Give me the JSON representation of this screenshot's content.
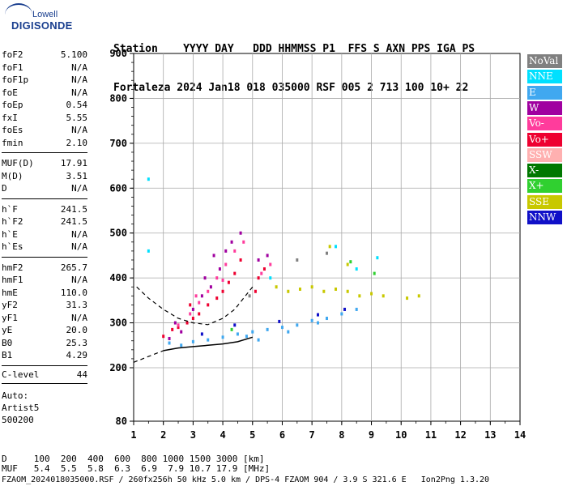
{
  "logo": {
    "top": "Lowell",
    "main": "DIGISONDE"
  },
  "header": {
    "line1": "Station    YYYY DAY   DDD HHMMSS P1  FFS S AXN PPS IGA PS",
    "line2": "Fortaleza 2024 Jan18 018 035000 RSF 005 2 713 100 10+ 22"
  },
  "params_group1": [
    {
      "k": "foF2",
      "v": "5.100"
    },
    {
      "k": "foF1",
      "v": "N/A"
    },
    {
      "k": "foF1p",
      "v": "N/A"
    },
    {
      "k": "foE",
      "v": "N/A"
    },
    {
      "k": "foEp",
      "v": "0.54"
    },
    {
      "k": "fxI",
      "v": "5.55"
    },
    {
      "k": "foEs",
      "v": "N/A"
    },
    {
      "k": "fmin",
      "v": "2.10"
    }
  ],
  "params_group2": [
    {
      "k": "MUF(D)",
      "v": "17.91"
    },
    {
      "k": "M(D)",
      "v": "3.51"
    },
    {
      "k": "D",
      "v": "N/A"
    }
  ],
  "params_group3": [
    {
      "k": "h`F",
      "v": "241.5"
    },
    {
      "k": "h`F2",
      "v": "241.5"
    },
    {
      "k": "h`E",
      "v": "N/A"
    },
    {
      "k": "h`Es",
      "v": "N/A"
    }
  ],
  "params_group4": [
    {
      "k": "hmF2",
      "v": "265.7"
    },
    {
      "k": "hmF1",
      "v": "N/A"
    },
    {
      "k": "hmE",
      "v": "110.0"
    },
    {
      "k": "yF2",
      "v": "31.3"
    },
    {
      "k": "yF1",
      "v": "N/A"
    },
    {
      "k": "yE",
      "v": "20.0"
    },
    {
      "k": "B0",
      "v": "25.3"
    },
    {
      "k": "B1",
      "v": "4.29"
    }
  ],
  "clevel": {
    "k": "C-level",
    "v": "44"
  },
  "auto": {
    "line1": "Auto:",
    "line2": "Artist5",
    "line3": "500200"
  },
  "legend": [
    {
      "label": "NoVal",
      "color": "#808080"
    },
    {
      "label": "NNE",
      "color": "#00e0ff"
    },
    {
      "label": "E",
      "color": "#40a8f0"
    },
    {
      "label": "W",
      "color": "#a000a0"
    },
    {
      "label": "Vo-",
      "color": "#ff3c9c"
    },
    {
      "label": "Vo+",
      "color": "#ee0030"
    },
    {
      "label": "SSW",
      "color": "#ffb0b0"
    },
    {
      "label": "X-",
      "color": "#007800"
    },
    {
      "label": "X+",
      "color": "#30d030"
    },
    {
      "label": "SSE",
      "color": "#c8c800"
    },
    {
      "label": "NNW",
      "color": "#1010c8"
    }
  ],
  "footer": {
    "line1": "D     100  200  400  600  800 1000 1500 3000 [km]",
    "line2": "MUF   5.4  5.5  5.8  6.3  6.9  7.9 10.7 17.9 [MHz]",
    "line3": "FZAOM_20240180350 00.RSF / 260fx256h 50 kHz 5.0 km / DPS-4 FZAOM 904 / 3.9 S 321.6 E   Ion2Png 1.3.20"
  },
  "chart_data": {
    "type": "scatter",
    "xlabel": "",
    "ylabel": "",
    "xlim": [
      1,
      14
    ],
    "ylim": [
      80,
      900
    ],
    "x_ticks": [
      "1",
      "2",
      "3",
      "4",
      "5",
      "6",
      "7",
      "8",
      "9",
      "10",
      "11",
      "12",
      "13",
      "14"
    ],
    "y_ticks": [
      "80",
      "200",
      "300",
      "400",
      "500",
      "600",
      "700",
      "800",
      "900"
    ],
    "grid": true,
    "series": [
      {
        "name": "E",
        "color": "#40a8f0",
        "points": [
          [
            2.2,
            255
          ],
          [
            2.6,
            250
          ],
          [
            3.0,
            258
          ],
          [
            3.5,
            262
          ],
          [
            4.0,
            268
          ],
          [
            4.5,
            275
          ],
          [
            5.0,
            280
          ],
          [
            5.5,
            285
          ],
          [
            6.0,
            290
          ],
          [
            6.5,
            295
          ],
          [
            7.0,
            305
          ],
          [
            7.5,
            310
          ],
          [
            8.0,
            320
          ],
          [
            8.5,
            330
          ],
          [
            5.2,
            262
          ],
          [
            4.8,
            270
          ],
          [
            6.2,
            280
          ],
          [
            7.2,
            300
          ]
        ]
      },
      {
        "name": "Vo+",
        "color": "#ee0030",
        "points": [
          [
            2.0,
            270
          ],
          [
            2.3,
            285
          ],
          [
            2.5,
            290
          ],
          [
            2.8,
            300
          ],
          [
            3.0,
            310
          ],
          [
            3.2,
            320
          ],
          [
            3.5,
            340
          ],
          [
            3.8,
            355
          ],
          [
            4.0,
            370
          ],
          [
            4.2,
            390
          ],
          [
            4.4,
            410
          ],
          [
            4.6,
            440
          ],
          [
            5.1,
            370
          ],
          [
            5.2,
            400
          ],
          [
            5.4,
            420
          ],
          [
            2.9,
            340
          ]
        ]
      },
      {
        "name": "W",
        "color": "#a000a0",
        "points": [
          [
            2.2,
            265
          ],
          [
            2.6,
            280
          ],
          [
            3.0,
            330
          ],
          [
            3.3,
            360
          ],
          [
            3.6,
            380
          ],
          [
            3.9,
            420
          ],
          [
            4.1,
            460
          ],
          [
            4.3,
            480
          ],
          [
            4.6,
            500
          ],
          [
            5.2,
            440
          ],
          [
            5.5,
            450
          ],
          [
            3.4,
            400
          ],
          [
            3.7,
            450
          ],
          [
            2.4,
            300
          ]
        ]
      },
      {
        "name": "Vo-",
        "color": "#ff3c9c",
        "points": [
          [
            2.5,
            295
          ],
          [
            2.9,
            320
          ],
          [
            3.2,
            345
          ],
          [
            3.5,
            370
          ],
          [
            3.8,
            400
          ],
          [
            4.1,
            430
          ],
          [
            4.4,
            460
          ],
          [
            4.7,
            480
          ],
          [
            5.3,
            410
          ],
          [
            5.6,
            430
          ],
          [
            3.1,
            360
          ],
          [
            4.0,
            395
          ]
        ]
      },
      {
        "name": "SSE",
        "color": "#c8c800",
        "points": [
          [
            5.8,
            380
          ],
          [
            6.2,
            370
          ],
          [
            6.6,
            375
          ],
          [
            7.0,
            380
          ],
          [
            7.4,
            370
          ],
          [
            7.8,
            375
          ],
          [
            8.2,
            370
          ],
          [
            8.6,
            360
          ],
          [
            9.0,
            365
          ],
          [
            9.4,
            360
          ],
          [
            10.2,
            355
          ],
          [
            10.6,
            360
          ],
          [
            7.6,
            470
          ],
          [
            8.2,
            430
          ]
        ]
      },
      {
        "name": "NNE",
        "color": "#00e0ff",
        "points": [
          [
            1.5,
            460
          ],
          [
            1.5,
            620
          ],
          [
            7.8,
            470
          ],
          [
            9.2,
            445
          ],
          [
            8.5,
            420
          ],
          [
            5.6,
            400
          ]
        ]
      },
      {
        "name": "NNW",
        "color": "#1010c8",
        "points": [
          [
            3.3,
            275
          ],
          [
            4.4,
            295
          ],
          [
            5.9,
            303
          ],
          [
            7.2,
            318
          ],
          [
            8.1,
            330
          ]
        ]
      },
      {
        "name": "X+",
        "color": "#30d030",
        "points": [
          [
            8.3,
            436
          ],
          [
            9.1,
            410
          ],
          [
            4.3,
            285
          ]
        ]
      },
      {
        "name": "NoVal",
        "color": "#808080",
        "points": [
          [
            6.5,
            440
          ],
          [
            7.5,
            455
          ],
          [
            4.9,
            360
          ]
        ]
      }
    ],
    "trace_curve": [
      [
        2.0,
        238
      ],
      [
        2.5,
        244
      ],
      [
        3.0,
        247
      ],
      [
        3.5,
        250
      ],
      [
        4.0,
        253
      ],
      [
        4.5,
        258
      ],
      [
        5.0,
        268
      ]
    ],
    "trace_dashed_lower": [
      [
        1.0,
        212
      ],
      [
        1.5,
        225
      ],
      [
        2.0,
        238
      ]
    ],
    "trace_dashed_upper": [
      [
        1.1,
        380
      ],
      [
        1.5,
        355
      ],
      [
        2.0,
        330
      ],
      [
        2.5,
        310
      ],
      [
        3.0,
        300
      ],
      [
        3.5,
        296
      ],
      [
        4.0,
        310
      ],
      [
        4.4,
        330
      ],
      [
        5.0,
        380
      ]
    ]
  }
}
